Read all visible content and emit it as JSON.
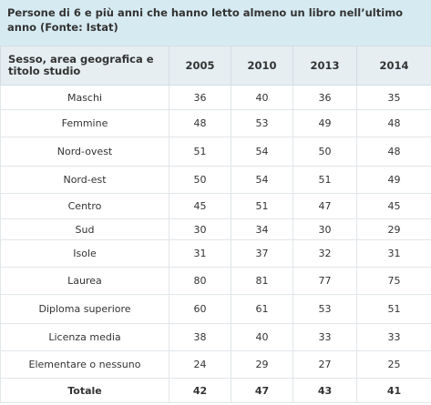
{
  "title": "Persone di 6 e più anni che hanno letto almeno un libro nell’ultimo anno (Fonte: Istat)",
  "table": {
    "headers": [
      "Sesso, area geografica e titolo studio",
      "2005",
      "2010",
      "2013",
      "2014"
    ],
    "rows": [
      [
        "Maschi",
        36,
        40,
        36,
        35
      ],
      [
        "Femmine",
        48,
        53,
        49,
        48
      ],
      [
        "Nord-ovest",
        51,
        54,
        50,
        48
      ],
      [
        "Nord-est",
        50,
        54,
        51,
        49
      ],
      [
        "Centro",
        45,
        51,
        47,
        45
      ],
      [
        "Sud",
        30,
        34,
        30,
        29
      ],
      [
        "Isole",
        31,
        37,
        32,
        31
      ],
      [
        "Laurea",
        80,
        81,
        77,
        75
      ],
      [
        "Diploma superiore",
        60,
        61,
        53,
        51
      ],
      [
        "Licenza media",
        38,
        40,
        33,
        33
      ],
      [
        "Elementare o nessuno",
        24,
        29,
        27,
        25
      ],
      [
        "Totale",
        42,
        47,
        43,
        41
      ]
    ]
  }
}
